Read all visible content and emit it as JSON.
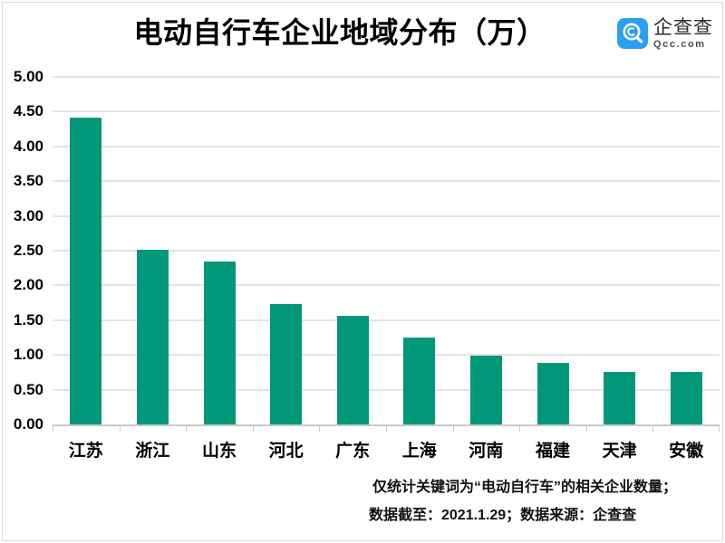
{
  "header": {
    "title": "电动自行车企业地域分布（万）"
  },
  "logo": {
    "name": "企查查",
    "domain": "Qcc.com",
    "brand_color": "#2b9ff0"
  },
  "chart_data": {
    "type": "bar",
    "title": "电动自行车企业地域分布（万）",
    "categories": [
      "江苏",
      "浙江",
      "山东",
      "河北",
      "广东",
      "上海",
      "河南",
      "福建",
      "天津",
      "安徽"
    ],
    "values": [
      4.41,
      2.51,
      2.35,
      1.73,
      1.56,
      1.25,
      0.99,
      0.88,
      0.76,
      0.75
    ],
    "ylim": [
      0,
      5
    ],
    "ytick_step": 0.5,
    "ytick_labels": [
      "0.00",
      "0.50",
      "1.00",
      "1.50",
      "2.00",
      "2.50",
      "3.00",
      "3.50",
      "4.00",
      "4.50",
      "5.00"
    ],
    "xlabel": "",
    "ylabel": "",
    "bar_color": "#009879",
    "grid": true,
    "legend": false
  },
  "footnote": {
    "line1": "仅统计关键词为“电动自行车”的相关企业数量；",
    "line2": "数据截至：2021.1.29；数据来源：企查查"
  }
}
